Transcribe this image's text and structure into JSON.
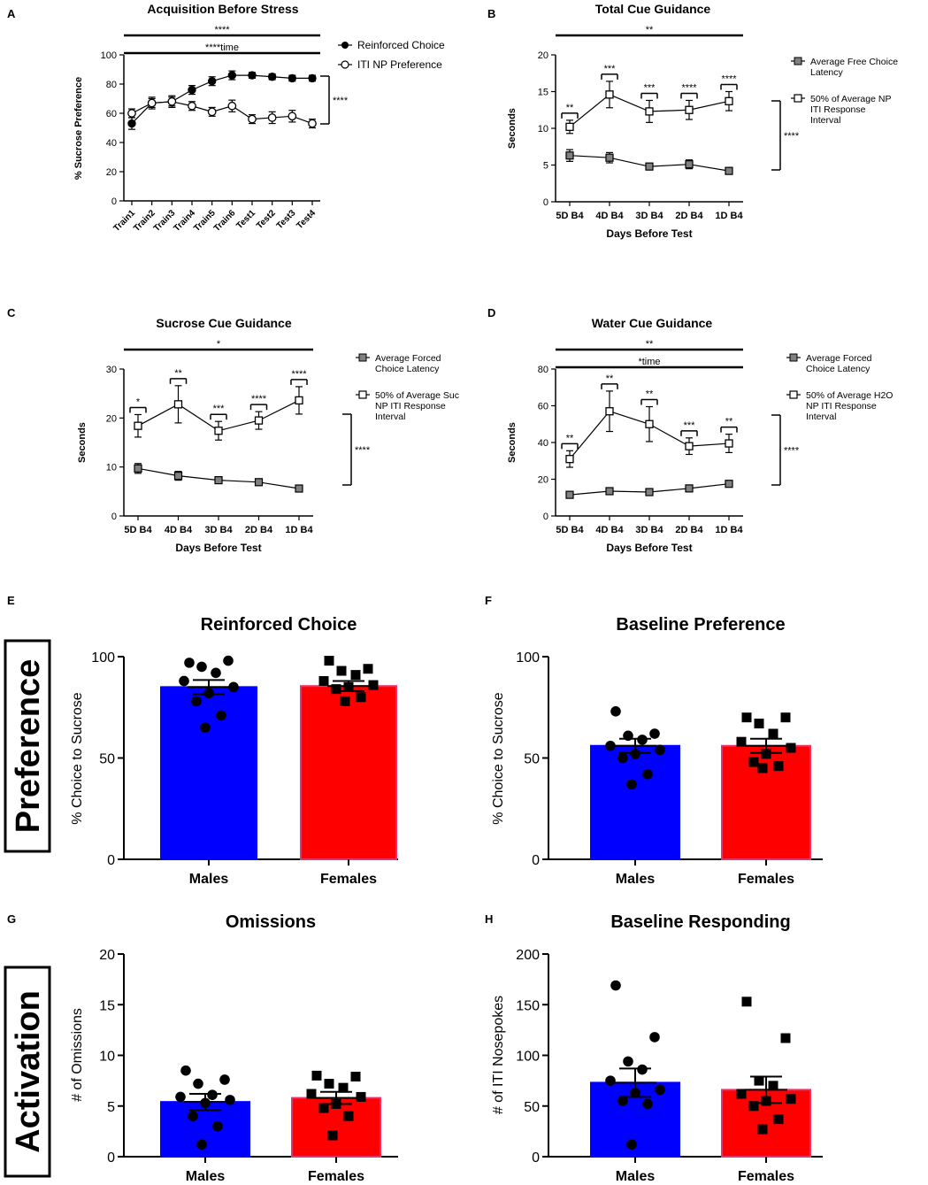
{
  "chart_data": [
    {
      "panel": "A",
      "type": "line",
      "title": "Acquisition Before Stress",
      "xlabel": "",
      "ylabel": "% Sucrose Preference",
      "ylim": [
        0,
        100
      ],
      "yticks": [
        0,
        20,
        40,
        60,
        80,
        100
      ],
      "categories": [
        "Train1",
        "Train2",
        "Train3",
        "Train4",
        "Train5",
        "Train6",
        "Test1",
        "Test2",
        "Test3",
        "Test4"
      ],
      "series": [
        {
          "name": "Reinforced Choice",
          "marker": "filled-circle",
          "values": [
            53,
            67,
            68,
            76,
            82,
            86,
            86,
            85,
            84,
            84
          ],
          "errors": [
            4,
            4,
            4,
            3,
            3,
            3,
            2,
            2,
            2,
            2
          ]
        },
        {
          "name": "ITI NP Preference",
          "marker": "open-circle",
          "values": [
            60,
            67,
            68,
            65,
            61,
            65,
            56,
            57,
            58,
            53
          ],
          "errors": [
            3,
            3,
            3,
            3,
            3,
            4,
            3,
            4,
            4,
            3
          ]
        }
      ],
      "top_bars": [
        "****",
        "****time"
      ],
      "side_bracket": "****",
      "pair_stars": []
    },
    {
      "panel": "B",
      "type": "line",
      "title": "Total Cue Guidance",
      "xlabel": "Days Before Test",
      "ylabel": "Seconds",
      "ylim": [
        0,
        20
      ],
      "yticks": [
        0,
        5,
        10,
        15,
        20
      ],
      "categories": [
        "5D B4",
        "4D B4",
        "3D B4",
        "2D B4",
        "1D B4"
      ],
      "series": [
        {
          "name": "Average Free Choice Latency",
          "marker": "filled-square",
          "values": [
            6.3,
            6.0,
            4.8,
            5.1,
            4.2
          ],
          "errors": [
            0.8,
            0.7,
            0.4,
            0.6,
            0.3
          ]
        },
        {
          "name": "50% of Average NP ITI Response Interval",
          "marker": "open-square",
          "values": [
            10.2,
            14.6,
            12.3,
            12.5,
            13.7
          ],
          "errors": [
            0.9,
            1.8,
            1.5,
            1.3,
            1.3
          ]
        }
      ],
      "top_bars": [
        "**"
      ],
      "side_bracket": "****",
      "pair_stars": [
        "**",
        "***",
        "***",
        "****",
        "****"
      ]
    },
    {
      "panel": "C",
      "type": "line",
      "title": "Sucrose Cue Guidance",
      "xlabel": "Days Before Test",
      "ylabel": "Seconds",
      "ylim": [
        0,
        30
      ],
      "yticks": [
        0,
        10,
        20,
        30
      ],
      "categories": [
        "5D B4",
        "4D B4",
        "3D B4",
        "2D B4",
        "1D B4"
      ],
      "series": [
        {
          "name": "Average Forced Choice Latency",
          "marker": "filled-square",
          "values": [
            9.7,
            8.2,
            7.3,
            6.9,
            5.6
          ],
          "errors": [
            1.0,
            0.9,
            0.6,
            0.6,
            0.5
          ]
        },
        {
          "name": "50% of Average Suc NP ITI Response Interval",
          "marker": "open-square",
          "values": [
            18.4,
            22.8,
            17.4,
            19.5,
            23.6
          ],
          "errors": [
            2.3,
            3.8,
            1.9,
            1.8,
            2.8
          ]
        }
      ],
      "top_bars": [
        "*"
      ],
      "side_bracket": "****",
      "pair_stars": [
        "*",
        "**",
        "***",
        "****",
        "****"
      ]
    },
    {
      "panel": "D",
      "type": "line",
      "title": "Water Cue Guidance",
      "xlabel": "Days Before Test",
      "ylabel": "Seconds",
      "ylim": [
        0,
        80
      ],
      "yticks": [
        0,
        20,
        40,
        60,
        80
      ],
      "categories": [
        "5D B4",
        "4D B4",
        "3D B4",
        "2D B4",
        "1D B4"
      ],
      "series": [
        {
          "name": "Average Forced Choice Latency",
          "marker": "filled-square",
          "values": [
            11.5,
            13.5,
            13.0,
            15.0,
            17.5
          ],
          "errors": [
            1.0,
            1.0,
            1.0,
            1.0,
            1.2
          ]
        },
        {
          "name": "50% of Average H2O NP ITI Response Interval",
          "marker": "open-square",
          "values": [
            31,
            57,
            50,
            38,
            39.5
          ],
          "errors": [
            4.5,
            11,
            9.5,
            4.5,
            5
          ]
        }
      ],
      "top_bars": [
        "**",
        "*time"
      ],
      "side_bracket": "****",
      "pair_stars": [
        "**",
        "**",
        "**",
        "***",
        "**"
      ]
    },
    {
      "panel": "E",
      "type": "bar",
      "title": "Reinforced Choice",
      "ylabel": "% Choice to Sucrose",
      "ylim": [
        0,
        100
      ],
      "yticks": [
        0,
        50,
        100
      ],
      "categories": [
        "Males",
        "Females"
      ],
      "values": [
        85,
        85.5
      ],
      "errors": [
        3.5,
        2.5
      ],
      "points": [
        [
          97,
          98,
          95,
          92,
          88,
          85,
          82,
          78,
          71,
          65
        ],
        [
          98,
          94,
          93,
          91,
          88,
          86,
          85,
          84,
          80,
          78
        ]
      ]
    },
    {
      "panel": "F",
      "type": "bar",
      "title": "Baseline Preference",
      "ylabel": "% Choice to Sucrose",
      "ylim": [
        0,
        100
      ],
      "yticks": [
        0,
        50,
        100
      ],
      "categories": [
        "Males",
        "Females"
      ],
      "values": [
        56,
        56
      ],
      "errors": [
        3.5,
        3.5
      ],
      "points": [
        [
          73,
          62,
          61,
          59,
          56,
          54,
          52,
          50,
          42,
          37
        ],
        [
          70,
          70,
          67,
          62,
          58,
          55,
          52,
          48,
          46,
          45
        ]
      ]
    },
    {
      "panel": "G",
      "type": "bar",
      "title": "Omissions",
      "ylabel": "# of Omissions",
      "ylim": [
        0,
        20
      ],
      "yticks": [
        0,
        5,
        10,
        15,
        20
      ],
      "categories": [
        "Males",
        "Females"
      ],
      "values": [
        5.4,
        5.8
      ],
      "errors": [
        0.8,
        0.6
      ],
      "points": [
        [
          8.5,
          7.6,
          7.2,
          6.1,
          5.9,
          5.6,
          5.3,
          4.0,
          3.0,
          1.2
        ],
        [
          8.0,
          7.9,
          7.2,
          6.8,
          6.2,
          5.9,
          5.2,
          4.8,
          4.0,
          2.1
        ]
      ]
    },
    {
      "panel": "H",
      "type": "bar",
      "title": "Baseline Responding",
      "ylabel": "# of ITI Nosepokes",
      "ylim": [
        0,
        200
      ],
      "yticks": [
        0,
        50,
        100,
        150,
        200
      ],
      "categories": [
        "Males",
        "Females"
      ],
      "values": [
        73,
        66
      ],
      "errors": [
        14,
        13
      ],
      "points": [
        [
          169,
          118,
          94,
          86,
          75,
          66,
          63,
          55,
          52,
          12
        ],
        [
          153,
          117,
          75,
          70,
          62,
          57,
          55,
          50,
          37,
          27
        ]
      ]
    }
  ],
  "side_labels": [
    "Preference",
    "Activation"
  ],
  "colors": {
    "males": "#0000ff",
    "females": "#ff0000",
    "females_edge": "#e8336b",
    "line": "#000000",
    "square_fill": "#808080"
  }
}
